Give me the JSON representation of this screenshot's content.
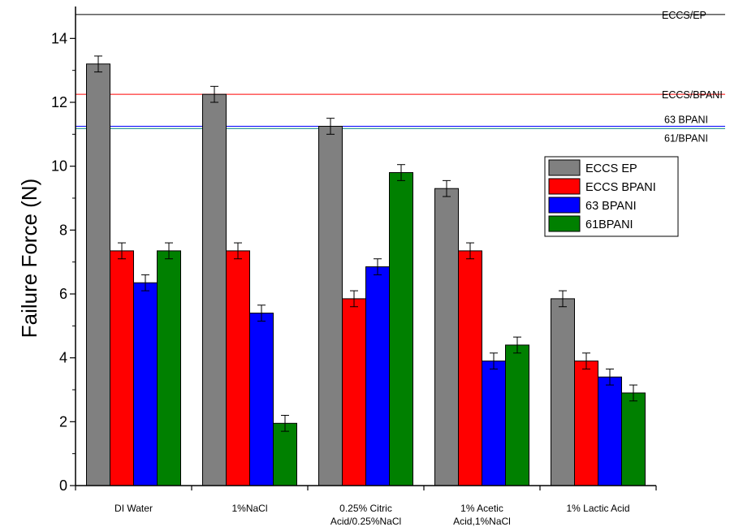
{
  "chart_data": {
    "type": "bar",
    "title": "",
    "xlabel": "",
    "ylabel": "Failure Force (N)",
    "ylim": [
      0,
      15
    ],
    "yticks": [
      0,
      2,
      4,
      6,
      8,
      10,
      12,
      14
    ],
    "grid": false,
    "legend_position": "right",
    "categories": [
      [
        "DI Water"
      ],
      [
        "1%NaCl"
      ],
      [
        "0.25% Citric",
        "Acid/0.25%NaCl"
      ],
      [
        "1% Acetic",
        "Acid,1%NaCl"
      ],
      [
        "1% Lactic Acid"
      ]
    ],
    "series": [
      {
        "name": "ECCS EP",
        "color": "#808080",
        "values": [
          13.2,
          12.25,
          11.25,
          9.3,
          5.85
        ],
        "errors": [
          0.25,
          0.25,
          0.25,
          0.25,
          0.25
        ]
      },
      {
        "name": "ECCS BPANI",
        "color": "#ff0000",
        "values": [
          7.35,
          7.35,
          5.85,
          7.35,
          3.9
        ],
        "errors": [
          0.25,
          0.25,
          0.25,
          0.25,
          0.25
        ]
      },
      {
        "name": "63 BPANI",
        "color": "#0000ff",
        "values": [
          6.35,
          5.4,
          6.85,
          3.9,
          3.4
        ],
        "errors": [
          0.25,
          0.25,
          0.25,
          0.25,
          0.25
        ]
      },
      {
        "name": "61BPANI",
        "color": "#008000",
        "values": [
          7.35,
          1.95,
          9.8,
          4.4,
          2.9
        ],
        "errors": [
          0.25,
          0.25,
          0.25,
          0.25,
          0.25
        ]
      }
    ],
    "reference_lines": [
      {
        "label": "ECCS/EP",
        "value": 14.75,
        "color": "#000000"
      },
      {
        "label": "ECCS/BPANI",
        "value": 12.25,
        "color": "#ff0000"
      },
      {
        "label": "63 BPANI",
        "value": 11.25,
        "color": "#0000ff"
      },
      {
        "label": "61/BPANI",
        "value": 11.18,
        "color": "#008080"
      }
    ]
  }
}
